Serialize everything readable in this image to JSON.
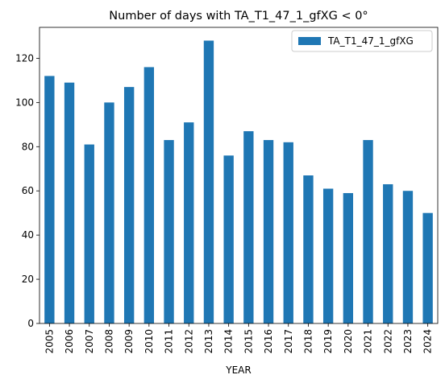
{
  "chart_data": {
    "type": "bar",
    "title": "Number of days with TA_T1_47_1_gfXG < 0°",
    "xlabel": "YEAR",
    "ylabel": "",
    "categories": [
      "2005",
      "2006",
      "2007",
      "2008",
      "2009",
      "2010",
      "2011",
      "2012",
      "2013",
      "2014",
      "2015",
      "2016",
      "2017",
      "2018",
      "2019",
      "2020",
      "2021",
      "2022",
      "2023",
      "2024"
    ],
    "series": [
      {
        "name": "TA_T1_47_1_gfXG",
        "values": [
          112,
          109,
          81,
          100,
          107,
          116,
          83,
          91,
          128,
          76,
          87,
          83,
          82,
          67,
          61,
          59,
          83,
          63,
          60,
          50
        ]
      }
    ],
    "ylim": [
      0,
      134
    ],
    "yticks": [
      0,
      20,
      40,
      60,
      80,
      100,
      120
    ],
    "legend_position": "top-right",
    "grid": false,
    "colors": {
      "bar": "#1f77b4",
      "axis": "#000000",
      "legend_border": "#cccccc"
    }
  }
}
